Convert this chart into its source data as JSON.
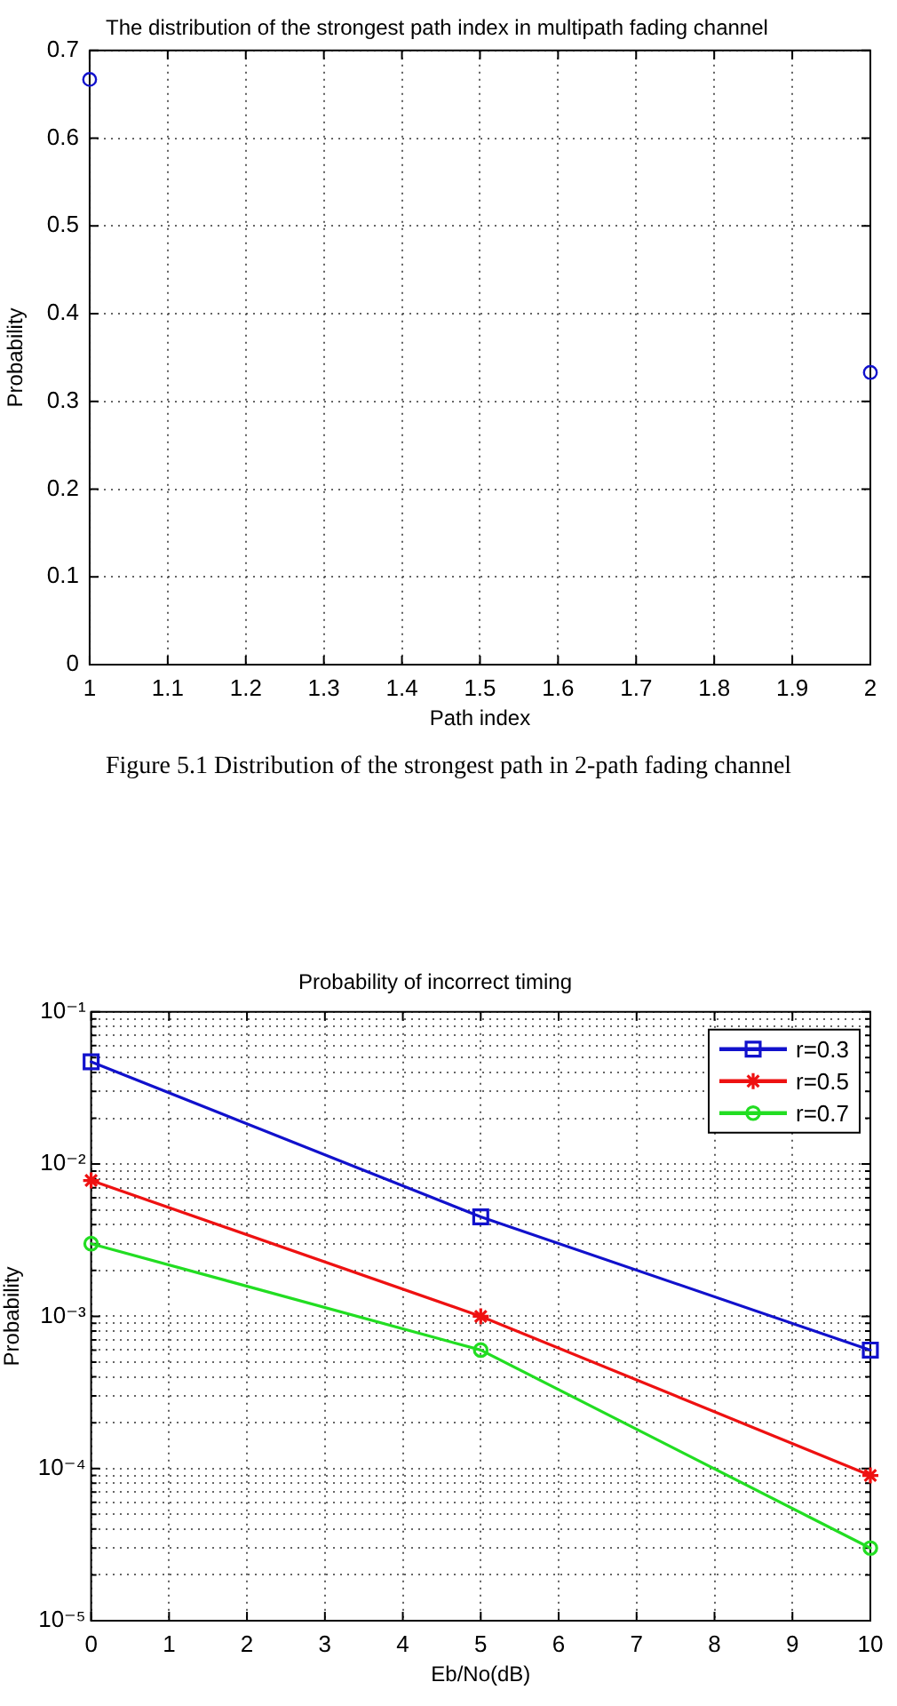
{
  "chart_data": [
    {
      "type": "scatter",
      "title": "The distribution of the strongest path index in multipath fading channel",
      "xlabel": "Path index",
      "ylabel": "Probability",
      "annotations": [
        "Figure 5.1 Distribution of the strongest path in 2-path fading channel"
      ],
      "x": [
        1,
        2
      ],
      "series": [
        {
          "color": "#1111cc",
          "values": [
            0.667,
            0.333
          ]
        }
      ],
      "marker": "circle",
      "xlim": [
        1,
        2
      ],
      "xticks": [
        1,
        1.1,
        1.2,
        1.3,
        1.4,
        1.5,
        1.6,
        1.7,
        1.8,
        1.9,
        2
      ],
      "ylim": [
        0,
        0.7
      ],
      "yticks": [
        0,
        0.1,
        0.2,
        0.3,
        0.4,
        0.5,
        0.6,
        0.7
      ],
      "grid": true
    },
    {
      "type": "line",
      "title": "Probability of incorrect timing",
      "xlabel": "Eb/No(dB)",
      "ylabel": "Probability",
      "x": [
        0,
        5,
        10
      ],
      "series": [
        {
          "name": "r=0.3",
          "color": "#1111cc",
          "marker": "square",
          "values": [
            0.047,
            0.0045,
            0.0006
          ]
        },
        {
          "name": "r=0.5",
          "color": "#ee1111",
          "marker": "cross",
          "values": [
            0.0078,
            0.001,
            9e-05
          ]
        },
        {
          "name": "r=0.7",
          "color": "#22dd22",
          "marker": "circle",
          "values": [
            0.003,
            0.0006,
            3e-05
          ]
        }
      ],
      "log": "y",
      "line_style": "solid",
      "legend": "top right",
      "grid": true,
      "xlim": [
        0,
        10
      ],
      "xticks": [
        0,
        1,
        2,
        3,
        4,
        5,
        6,
        7,
        8,
        9,
        10
      ],
      "ylim": [
        1e-05,
        0.1
      ],
      "yticks": [
        {
          "value": 1e-05,
          "label": "10⁻⁵"
        },
        {
          "value": 2e-05,
          "label": null
        },
        {
          "value": 3e-05,
          "label": null
        },
        {
          "value": 4e-05,
          "label": null
        },
        {
          "value": 5e-05,
          "label": null
        },
        {
          "value": 6e-05,
          "label": null
        },
        {
          "value": 7e-05,
          "label": null
        },
        {
          "value": 8e-05,
          "label": null
        },
        {
          "value": 9e-05,
          "label": null
        },
        {
          "value": 0.0001,
          "label": "10⁻⁴"
        },
        {
          "value": 0.0002,
          "label": null
        },
        {
          "value": 0.0003,
          "label": null
        },
        {
          "value": 0.0004,
          "label": null
        },
        {
          "value": 0.0005,
          "label": null
        },
        {
          "value": 0.0006,
          "label": null
        },
        {
          "value": 0.0007,
          "label": null
        },
        {
          "value": 0.0008,
          "label": null
        },
        {
          "value": 0.0009,
          "label": null
        },
        {
          "value": 0.001,
          "label": "10⁻³"
        },
        {
          "value": 0.002,
          "label": null
        },
        {
          "value": 0.003,
          "label": null
        },
        {
          "value": 0.004,
          "label": null
        },
        {
          "value": 0.005,
          "label": null
        },
        {
          "value": 0.006,
          "label": null
        },
        {
          "value": 0.007,
          "label": null
        },
        {
          "value": 0.008,
          "label": null
        },
        {
          "value": 0.009,
          "label": null
        },
        {
          "value": 0.01,
          "label": "10⁻²"
        },
        {
          "value": 0.02,
          "label": null
        },
        {
          "value": 0.03,
          "label": null
        },
        {
          "value": 0.04,
          "label": null
        },
        {
          "value": 0.05,
          "label": null
        },
        {
          "value": 0.06,
          "label": null
        },
        {
          "value": 0.07,
          "label": null
        },
        {
          "value": 0.08,
          "label": null
        },
        {
          "value": 0.09,
          "label": null
        },
        {
          "value": 0.1,
          "label": "10⁻¹"
        }
      ]
    }
  ]
}
